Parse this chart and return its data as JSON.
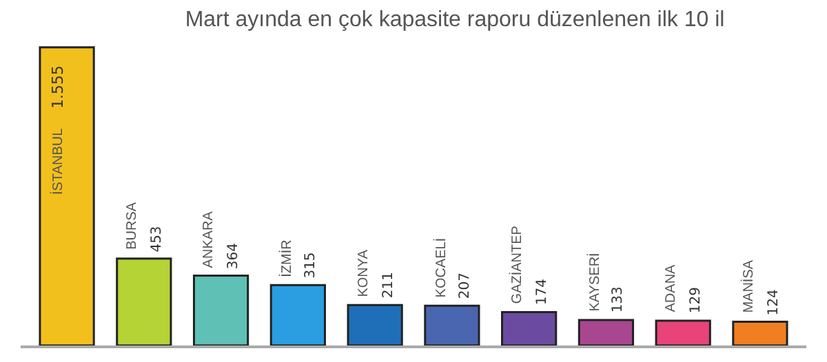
{
  "chart_data": {
    "type": "bar",
    "title": "Mart ayında en çok kapasite raporu düzenlenen ilk 10 il",
    "categories": [
      "İSTANBUL",
      "BURSA",
      "ANKARA",
      "İZMİR",
      "KONYA",
      "KOCAELİ",
      "GAZİANTEP",
      "KAYSERİ",
      "ADANA",
      "MANİSA"
    ],
    "values": [
      1555,
      453,
      364,
      315,
      211,
      207,
      174,
      133,
      129,
      124
    ],
    "value_labels": [
      "1.555",
      "453",
      "364",
      "315",
      "211",
      "207",
      "174",
      "133",
      "129",
      "124"
    ],
    "colors": [
      "#f2c01c",
      "#b5d334",
      "#5fc0b5",
      "#2a9ee0",
      "#1e6fb8",
      "#4a66b0",
      "#6a4ba0",
      "#a8478f",
      "#e8447a",
      "#f07f22"
    ]
  }
}
